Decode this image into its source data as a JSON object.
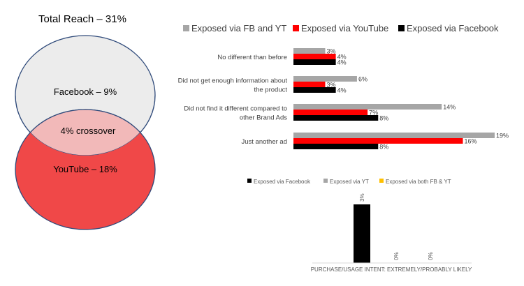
{
  "venn": {
    "title": "Total Reach – 31%",
    "facebook_label": "Facebook – 9%",
    "crossover_label": "4% crossover",
    "youtube_label": "YouTube – 18%",
    "colors": {
      "facebook": "#ececec",
      "youtube": "#f04848",
      "overlap": "#f2b9b9"
    }
  },
  "chart_data": [
    {
      "type": "bar",
      "orientation": "horizontal",
      "title": "",
      "xlabel": "",
      "ylabel": "",
      "xlim": [
        0,
        19
      ],
      "legend_position": "top",
      "categories": [
        "No different than before",
        "Did not get enough information about the product",
        "Did not find it different compared to other Brand Ads",
        "Just another ad"
      ],
      "category_lines": [
        [
          "No different than before"
        ],
        [
          "Did not get enough information about",
          "the product"
        ],
        [
          "Did not find it different compared to",
          "other Brand Ads"
        ],
        [
          "Just another ad"
        ]
      ],
      "series": [
        {
          "name": "Exposed via FB and YT",
          "color": "#a6a6a6",
          "values": [
            3,
            6,
            14,
            19
          ],
          "labels": [
            "3%",
            "6%",
            "14%",
            "19%"
          ]
        },
        {
          "name": "Exposed via YouTube",
          "color": "#ff0000",
          "values": [
            4,
            3,
            7,
            16
          ],
          "labels": [
            "4%",
            "3%",
            "7%",
            "16%"
          ]
        },
        {
          "name": "Exposed via Facebook",
          "color": "#000000",
          "values": [
            4,
            4,
            8,
            8
          ],
          "labels": [
            "4%",
            "4%",
            "8%",
            "8%"
          ]
        }
      ],
      "grid": false
    },
    {
      "type": "bar",
      "orientation": "vertical",
      "title": "",
      "xlabel": "PURCHASE/USAGE INTENT: EXTREMELY/PROBABLY LIKELY",
      "ylabel": "",
      "ylim": [
        0,
        3.5
      ],
      "legend_position": "top",
      "categories": [
        "PURCHASE/USAGE INTENT: EXTREMELY/PROBABLY LIKELY"
      ],
      "series": [
        {
          "name": "Exposed via Facebook",
          "color": "#000000",
          "values": [
            3
          ],
          "labels": [
            "3%"
          ]
        },
        {
          "name": "Exposed via YT",
          "color": "#a6a6a6",
          "values": [
            0
          ],
          "labels": [
            "0%"
          ]
        },
        {
          "name": "Exposed via both FB & YT",
          "color": "#ffc000",
          "values": [
            0
          ],
          "labels": [
            "0%"
          ]
        }
      ],
      "grid": false
    }
  ]
}
